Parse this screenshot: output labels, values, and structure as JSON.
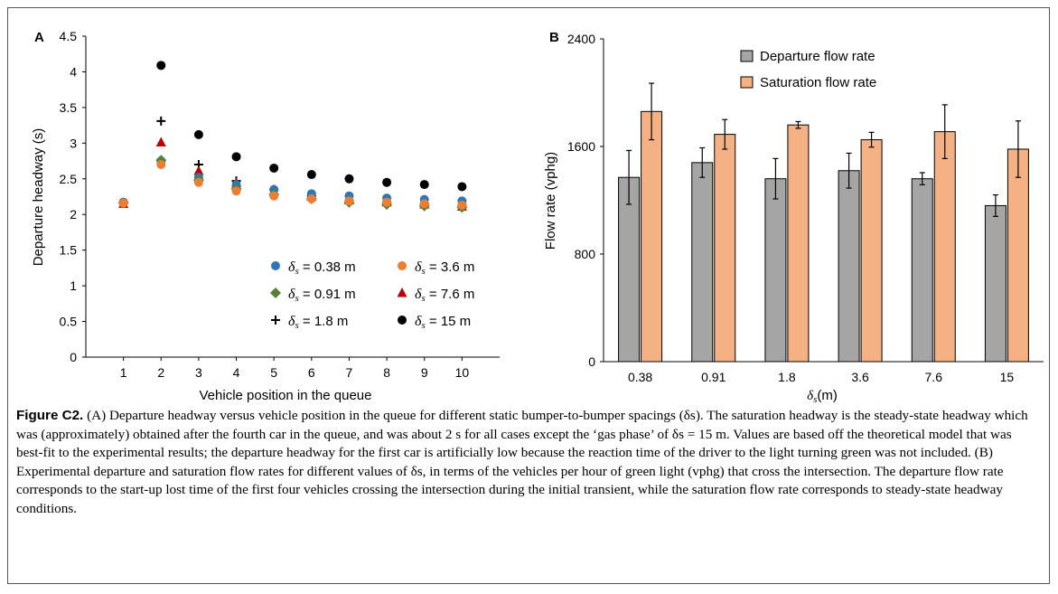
{
  "panels": {
    "a_label": "A",
    "b_label": "B"
  },
  "chart_data": [
    {
      "type": "scatter",
      "xlabel": "Vehicle position in the queue",
      "ylabel": "Departure headway (s)",
      "xlim": [
        0,
        11
      ],
      "ylim": [
        0,
        4.5
      ],
      "xticks": [
        1,
        2,
        3,
        4,
        5,
        6,
        7,
        8,
        9,
        10
      ],
      "yticks": [
        "0",
        "0.5",
        "1",
        "1.5",
        "2",
        "2.5",
        "3",
        "3.5",
        "4",
        "4.5"
      ],
      "legend_position": "bottom-right",
      "series": [
        {
          "name": "0.38",
          "marker": "circle",
          "color": "#2E75B6",
          "x": [
            1,
            2,
            3,
            4,
            5,
            6,
            7,
            8,
            9,
            10
          ],
          "y": [
            2.17,
            2.75,
            2.52,
            2.42,
            2.35,
            2.29,
            2.26,
            2.23,
            2.21,
            2.19
          ]
        },
        {
          "name": "3.6",
          "marker": "circle",
          "color": "#ED7D31",
          "x": [
            1,
            2,
            3,
            4,
            5,
            6,
            7,
            8,
            9,
            10
          ],
          "y": [
            2.16,
            2.7,
            2.45,
            2.33,
            2.26,
            2.22,
            2.19,
            2.17,
            2.15,
            2.13
          ]
        },
        {
          "name": "0.91",
          "marker": "diamond",
          "color": "#548235",
          "x": [
            1,
            2,
            3,
            4,
            5,
            6,
            7,
            8,
            9,
            10
          ],
          "y": [
            2.16,
            2.76,
            2.48,
            2.36,
            2.28,
            2.22,
            2.17,
            2.14,
            2.12,
            2.1
          ]
        },
        {
          "name": "7.6",
          "marker": "triangle",
          "color": "#C00000",
          "x": [
            1,
            2,
            3,
            4,
            5,
            6,
            7,
            8,
            9,
            10
          ],
          "y": [
            2.15,
            3.01,
            2.61,
            2.44,
            2.33,
            2.25,
            2.2,
            2.17,
            2.14,
            2.11
          ]
        },
        {
          "name": "1.8",
          "marker": "plus",
          "color": "#000000",
          "x": [
            1,
            2,
            3,
            4,
            5,
            6,
            7,
            8,
            9,
            10
          ],
          "y": [
            2.16,
            3.31,
            2.7,
            2.47,
            2.35,
            2.26,
            2.2,
            2.17,
            2.15,
            2.13
          ]
        },
        {
          "name": "15",
          "marker": "circle",
          "color": "#000000",
          "x": [
            1,
            2,
            3,
            4,
            5,
            6,
            7,
            8,
            9,
            10
          ],
          "y": [
            2.17,
            4.09,
            3.12,
            2.81,
            2.65,
            2.56,
            2.5,
            2.45,
            2.42,
            2.39
          ]
        }
      ]
    },
    {
      "type": "bar",
      "xlabel_symbol": "δ",
      "xlabel_sub": "s",
      "xlabel_unit": "(m)",
      "ylabel": "Flow rate (vphg)",
      "ylim": [
        0,
        2400
      ],
      "yticks": [
        "0",
        "800",
        "1600",
        "2400"
      ],
      "categories": [
        "0.38",
        "0.91",
        "1.8",
        "3.6",
        "7.6",
        "15"
      ],
      "legend_position": "top-center",
      "series": [
        {
          "name": "Departure flow rate",
          "color": "#A5A5A5",
          "values": [
            1370,
            1480,
            1360,
            1420,
            1360,
            1160
          ],
          "errors": [
            200,
            110,
            150,
            130,
            45,
            80
          ]
        },
        {
          "name": "Saturation flow rate",
          "color": "#F4B183",
          "values": [
            1860,
            1690,
            1760,
            1650,
            1710,
            1580
          ],
          "errors": [
            210,
            110,
            25,
            55,
            200,
            210
          ]
        }
      ]
    }
  ],
  "legend_symbol": "δ",
  "legend_sub": "s",
  "legend_eq": " = ",
  "legend_unit": " m",
  "caption": {
    "label": "Figure C2.",
    "text": " (A) Departure headway versus vehicle position in the queue for different static bumper-to-bumper spacings (δs). The saturation headway is the steady-state headway which was (approximately) obtained after the fourth car in the queue, and was about 2 s for all cases except the ‘gas phase’ of δs = 15 m. Values are based off the theoretical model that was best-fit to the experimental results; the departure headway for the first car is artificially low because the reaction time of the driver to the light turning green was not included. (B) Experimental departure and saturation flow rates for different values of δs, in terms of the vehicles per hour of green light (vphg) that cross the intersection. The departure flow rate corresponds to the start-up lost time of the first four vehicles crossing the intersection during the initial transient, while the saturation flow rate corresponds to steady-state headway conditions."
  }
}
